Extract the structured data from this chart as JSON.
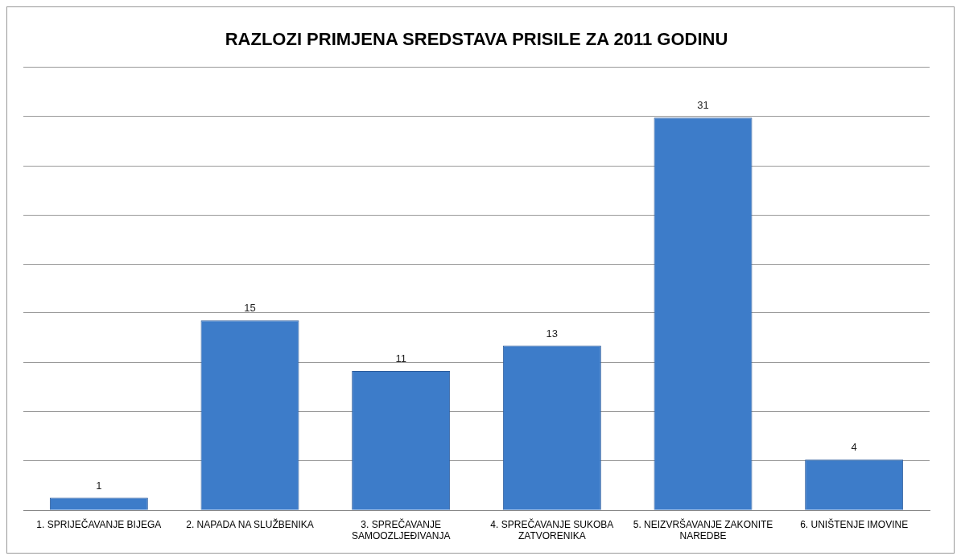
{
  "chart_data": {
    "type": "bar",
    "title": "RAZLOZI PRIMJENA SREDSTAVA PRISILE ZA 2011 GODINU",
    "categories": [
      "1. SPRIJEČAVANJE BIJEGA",
      "2. NAPADA NA SLUŽBENIKA",
      "3. SPREČAVANJE SAMOOZLJEĐIVANJA",
      "4. SPREČAVANJE SUKOBA ZATVORENIKA",
      "5. NEIZVRŠAVANJE ZAKONITE NAREDBE",
      "6. UNIŠTENJE IMOVINE"
    ],
    "values": [
      1,
      15,
      11,
      13,
      31,
      4
    ],
    "color": "#3d7cc9",
    "data_labels": true,
    "ylim": [
      0,
      35
    ],
    "yticks": [
      {
        "value": 0,
        "label": null
      },
      {
        "value": 3.9,
        "label": null
      },
      {
        "value": 7.8,
        "label": null
      },
      {
        "value": 11.7,
        "label": null
      },
      {
        "value": 15.6,
        "label": null
      },
      {
        "value": 19.4,
        "label": null
      },
      {
        "value": 23.3,
        "label": null
      },
      {
        "value": 27.2,
        "label": null
      },
      {
        "value": 31.1,
        "label": null
      },
      {
        "value": 35,
        "label": null
      }
    ],
    "tick_labels": "x",
    "grid": "y",
    "legend": false
  }
}
